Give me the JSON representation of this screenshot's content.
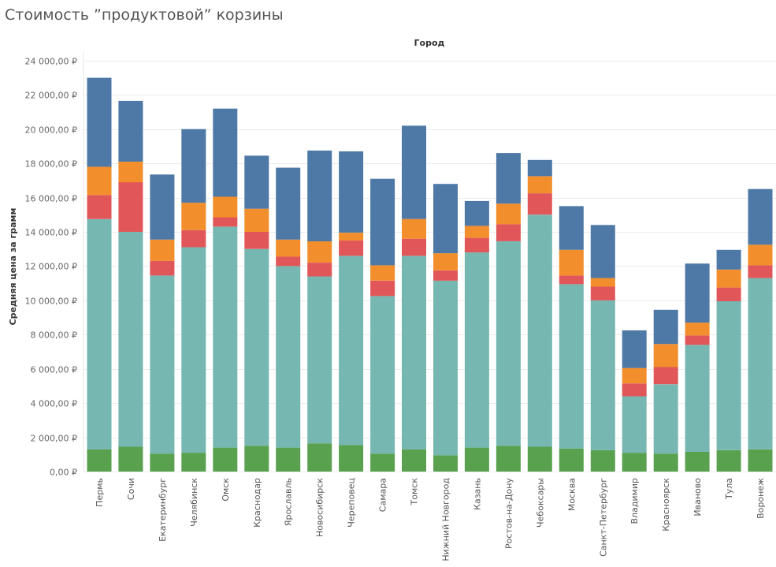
{
  "page": {
    "title": "Стоимость ”продуктовой” корзины"
  },
  "chart_data": {
    "type": "bar",
    "stacked": true,
    "header": "Город",
    "xlabel": "",
    "ylabel": "Средняя цена за грамм",
    "ylim": [
      0,
      24500
    ],
    "yticks": [
      {
        "value": 0,
        "label": "0,00 ₽"
      },
      {
        "value": 2000,
        "label": "2 000,00 ₽"
      },
      {
        "value": 4000,
        "label": "4 000,00 ₽"
      },
      {
        "value": 6000,
        "label": "6 000,00 ₽"
      },
      {
        "value": 8000,
        "label": "8 000,00 ₽"
      },
      {
        "value": 10000,
        "label": "10 000,00 ₽"
      },
      {
        "value": 12000,
        "label": "12 000,00 ₽"
      },
      {
        "value": 14000,
        "label": "14 000,00 ₽"
      },
      {
        "value": 16000,
        "label": "16 000,00 ₽"
      },
      {
        "value": 18000,
        "label": "18 000,00 ₽"
      },
      {
        "value": 20000,
        "label": "20 000,00 ₽"
      },
      {
        "value": 22000,
        "label": "22 000,00 ₽"
      },
      {
        "value": 24000,
        "label": "24 000,00 ₽"
      }
    ],
    "grid": true,
    "legend": "none",
    "categories": [
      "Пермь",
      "Сочи",
      "Екатеринбург",
      "Челябинск",
      "Омск",
      "Краснодар",
      "Ярославль",
      "Новосибирск",
      "Череповец",
      "Самара",
      "Томск",
      "Нижний Новгород",
      "Казань",
      "Ростов-на-Дону",
      "Чебоксары",
      "Москва",
      "Санкт-Петербург",
      "Владимир",
      "Красноярск",
      "Иваново",
      "Тула",
      "Воронеж"
    ],
    "series": [
      {
        "color": "#59a14f",
        "values": [
          1300,
          1450,
          1050,
          1100,
          1400,
          1500,
          1400,
          1650,
          1550,
          1050,
          1300,
          950,
          1400,
          1500,
          1450,
          1350,
          1250,
          1100,
          1050,
          1150,
          1250,
          1300
        ]
      },
      {
        "color": "#76b7b2",
        "values": [
          13450,
          12550,
          10400,
          12000,
          12900,
          11500,
          10600,
          9750,
          11050,
          9200,
          11300,
          10200,
          11400,
          11950,
          13550,
          9600,
          8750,
          3300,
          4050,
          6250,
          8700,
          10000
        ]
      },
      {
        "color": "#e15759",
        "values": [
          1400,
          2900,
          850,
          1000,
          550,
          1000,
          550,
          800,
          900,
          900,
          1000,
          600,
          850,
          1000,
          1250,
          500,
          800,
          750,
          1000,
          550,
          800,
          750
        ]
      },
      {
        "color": "#f28e2b",
        "values": [
          1650,
          1200,
          1250,
          1600,
          1200,
          1350,
          1000,
          1250,
          450,
          900,
          1150,
          1000,
          700,
          1200,
          1000,
          1500,
          500,
          900,
          1350,
          750,
          1050,
          1200
        ]
      },
      {
        "color": "#4e79a7",
        "values": [
          5200,
          3550,
          3800,
          4300,
          5150,
          3100,
          4200,
          5300,
          4750,
          5050,
          5450,
          4050,
          1450,
          2950,
          950,
          2550,
          3100,
          2200,
          2000,
          3450,
          1150,
          3250
        ]
      }
    ]
  }
}
